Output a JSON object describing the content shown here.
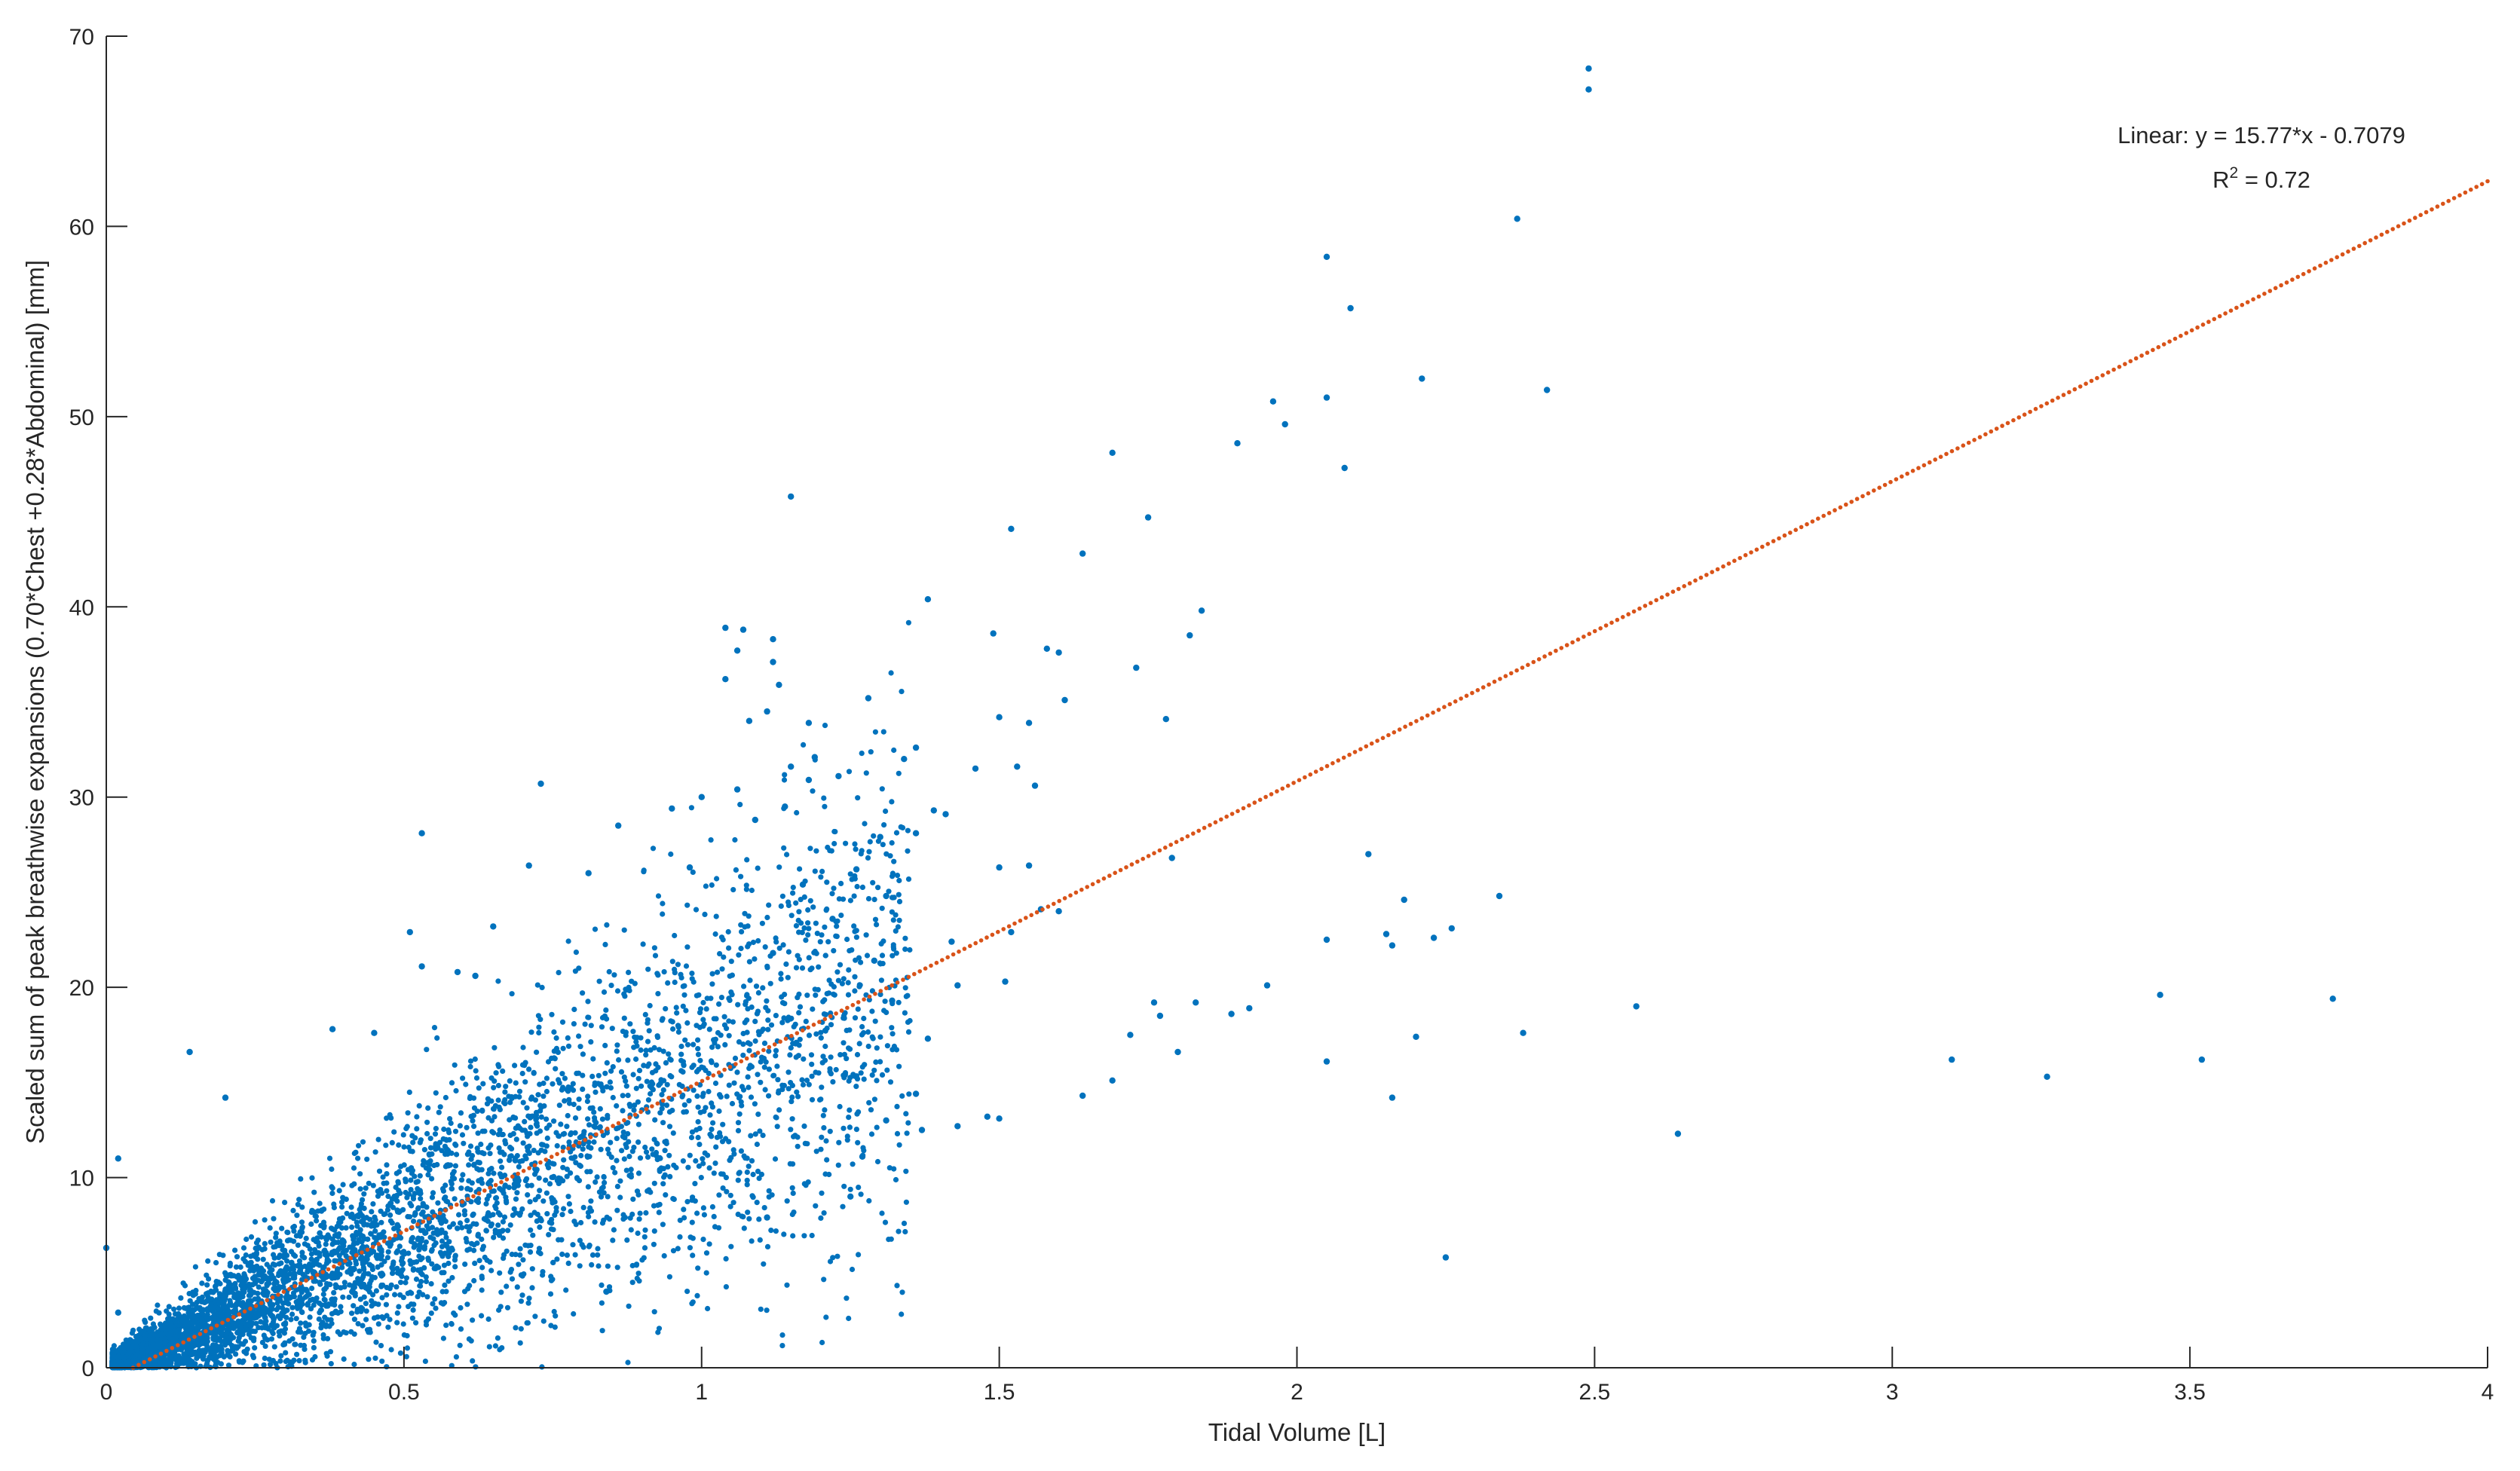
{
  "chart_data": {
    "type": "scatter",
    "xlabel": "Tidal Volume [L]",
    "ylabel": "Scaled sum of peak breathwise expansions (0.70*Chest +0.28*Abdominal) [mm]",
    "xlim": [
      0,
      4
    ],
    "ylim": [
      0,
      70
    ],
    "x_ticks": [
      0,
      0.5,
      1,
      1.5,
      2,
      2.5,
      3,
      3.5,
      4
    ],
    "x_tick_labels": [
      "0",
      "0.5",
      "1",
      "1.5",
      "2",
      "2.5",
      "3",
      "3.5",
      "4"
    ],
    "y_ticks": [
      0,
      10,
      20,
      30,
      40,
      50,
      60,
      70
    ],
    "y_tick_labels": [
      "0",
      "10",
      "20",
      "30",
      "40",
      "50",
      "60",
      "70"
    ],
    "grid": false,
    "legend": "none",
    "annotation": {
      "equation": "Linear:  y = 15.77*x - 0.7079",
      "r2_label": "R",
      "r2_exp": "2",
      "r2_value": " = 0.72"
    },
    "fit": {
      "slope": 15.77,
      "intercept": -0.7079,
      "r2": 0.72,
      "x_range": [
        0.045,
        4
      ],
      "color": "#D95319",
      "style": "dotted"
    },
    "series": [
      {
        "points": [
          [
            2.49,
            68.3
          ],
          [
            2.49,
            67.2
          ],
          [
            2.37,
            60.4
          ],
          [
            2.05,
            58.4
          ],
          [
            2.09,
            55.7
          ],
          [
            2.21,
            52.0
          ],
          [
            2.42,
            51.4
          ],
          [
            2.05,
            51.0
          ],
          [
            1.96,
            50.8
          ],
          [
            1.98,
            49.6
          ],
          [
            1.9,
            48.6
          ],
          [
            2.08,
            47.3
          ],
          [
            1.69,
            48.1
          ],
          [
            1.15,
            45.8
          ],
          [
            1.75,
            44.7
          ],
          [
            1.52,
            44.1
          ],
          [
            1.64,
            42.8
          ],
          [
            1.38,
            40.4
          ],
          [
            1.84,
            39.8
          ],
          [
            1.82,
            38.5
          ],
          [
            1.04,
            38.9
          ],
          [
            1.07,
            38.8
          ],
          [
            1.06,
            37.7
          ],
          [
            1.12,
            38.3
          ],
          [
            1.49,
            38.6
          ],
          [
            1.58,
            37.8
          ],
          [
            1.6,
            37.6
          ],
          [
            1.73,
            36.8
          ],
          [
            1.04,
            36.2
          ],
          [
            1.12,
            37.1
          ],
          [
            1.13,
            35.9
          ],
          [
            1.11,
            34.5
          ],
          [
            1.08,
            34.0
          ],
          [
            1.28,
            35.2
          ],
          [
            1.61,
            35.1
          ],
          [
            1.78,
            34.1
          ],
          [
            1.5,
            34.2
          ],
          [
            1.55,
            33.9
          ],
          [
            1.18,
            33.9
          ],
          [
            1.36,
            32.6
          ],
          [
            1.34,
            32.0
          ],
          [
            1.19,
            32.1
          ],
          [
            1.15,
            31.6
          ],
          [
            1.23,
            31.1
          ],
          [
            1.46,
            31.5
          ],
          [
            1.53,
            31.6
          ],
          [
            1.56,
            30.6
          ],
          [
            0.73,
            30.7
          ],
          [
            1.18,
            30.9
          ],
          [
            1.0,
            30.0
          ],
          [
            1.06,
            30.4
          ],
          [
            1.14,
            29.5
          ],
          [
            1.09,
            28.8
          ],
          [
            1.39,
            29.3
          ],
          [
            1.41,
            29.1
          ],
          [
            0.53,
            28.1
          ],
          [
            0.86,
            28.5
          ],
          [
            0.95,
            29.4
          ],
          [
            1.3,
            27.9
          ],
          [
            1.36,
            28.1
          ],
          [
            1.79,
            26.8
          ],
          [
            1.5,
            26.3
          ],
          [
            1.55,
            26.4
          ],
          [
            1.26,
            26.2
          ],
          [
            0.71,
            26.4
          ],
          [
            0.81,
            26.0
          ],
          [
            0.98,
            26.3
          ],
          [
            2.12,
            27.0
          ],
          [
            2.18,
            24.6
          ],
          [
            2.34,
            24.8
          ],
          [
            1.31,
            24.8
          ],
          [
            1.17,
            25.4
          ],
          [
            1.57,
            24.1
          ],
          [
            1.6,
            24.0
          ],
          [
            0.65,
            23.2
          ],
          [
            0.51,
            22.9
          ],
          [
            1.22,
            23.6
          ],
          [
            1.52,
            22.9
          ],
          [
            1.42,
            22.4
          ],
          [
            2.15,
            22.8
          ],
          [
            2.05,
            22.5
          ],
          [
            2.16,
            22.2
          ],
          [
            2.23,
            22.6
          ],
          [
            2.26,
            23.1
          ],
          [
            0.53,
            21.1
          ],
          [
            0.59,
            20.8
          ],
          [
            0.62,
            20.6
          ],
          [
            1.12,
            21.8
          ],
          [
            1.29,
            21.4
          ],
          [
            1.43,
            20.1
          ],
          [
            1.51,
            20.3
          ],
          [
            1.95,
            20.1
          ],
          [
            3.45,
            19.6
          ],
          [
            3.74,
            19.4
          ],
          [
            2.57,
            19.0
          ],
          [
            1.76,
            19.2
          ],
          [
            1.83,
            19.2
          ],
          [
            1.77,
            18.5
          ],
          [
            1.89,
            18.6
          ],
          [
            1.92,
            18.9
          ],
          [
            0.38,
            17.8
          ],
          [
            0.45,
            17.6
          ],
          [
            1.32,
            19.3
          ],
          [
            1.38,
            17.3
          ],
          [
            1.72,
            17.5
          ],
          [
            2.38,
            17.6
          ],
          [
            2.2,
            17.4
          ],
          [
            0.14,
            16.6
          ],
          [
            1.8,
            16.6
          ],
          [
            2.05,
            16.1
          ],
          [
            3.1,
            16.2
          ],
          [
            3.52,
            16.2
          ],
          [
            3.26,
            15.3
          ],
          [
            1.69,
            15.1
          ],
          [
            1.64,
            14.3
          ],
          [
            2.16,
            14.2
          ],
          [
            1.36,
            14.4
          ],
          [
            0.2,
            14.2
          ],
          [
            1.5,
            13.1
          ],
          [
            1.48,
            13.2
          ],
          [
            1.37,
            12.5
          ],
          [
            1.31,
            13.0
          ],
          [
            1.43,
            12.7
          ],
          [
            2.64,
            12.3
          ],
          [
            0.02,
            11.0
          ],
          [
            1.27,
            11.1
          ],
          [
            1.25,
            9.0
          ],
          [
            1.11,
            7.9
          ],
          [
            2.25,
            5.8
          ],
          [
            0.84,
            4.0
          ],
          [
            0.0,
            6.3
          ],
          [
            0.02,
            2.9
          ]
        ],
        "cluster_model": {
          "count": 5200,
          "x_range": [
            0.01,
            1.35
          ],
          "x_skew_exponent": 1.9,
          "slope": 15.2,
          "intercept": -0.3,
          "noise_sd_base": 0.35,
          "noise_sd_slope": 5.0,
          "y_min": 0
        },
        "color": "#0072BD",
        "marker": "dot"
      }
    ]
  }
}
